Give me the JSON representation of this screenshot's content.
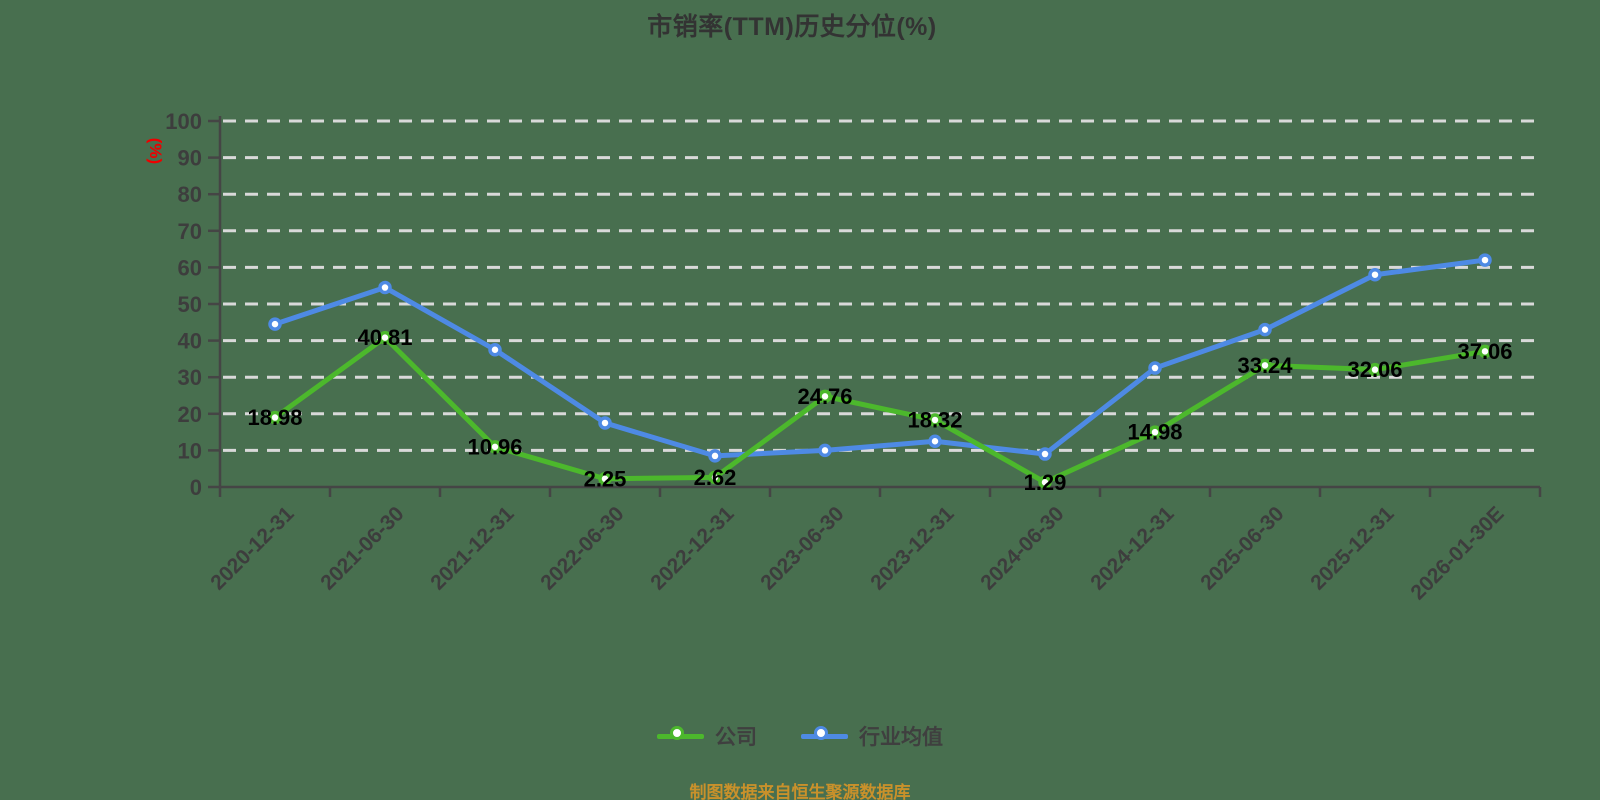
{
  "title": "市销率(TTM)历史分位(%)",
  "source_note": "制图数据来自恒生聚源数据库",
  "colors": {
    "background": "#486f4f",
    "grid": "#d9d9d9",
    "axis": "#454545",
    "tick_label": "#3d3d3d",
    "data_label": "#000000",
    "y_axis_name_color": "#ee0000",
    "title_color": "#333333",
    "source_note_color": "#c9912b",
    "legend_text": "#3f3f3f",
    "marker_fill": "#ffffff",
    "company_color": "#4cb82c",
    "industry_color": "#4e8ae4"
  },
  "chart_data": {
    "type": "line",
    "title": "市销率(TTM)历史分位(%)",
    "xlabel": "",
    "ylabel": "(%)",
    "ylim": [
      0,
      100
    ],
    "ytick_interval": 10,
    "grid": true,
    "grid_style": "dashed",
    "legend_position": "bottom",
    "categories": [
      "2020-12-31",
      "2021-06-30",
      "2021-12-31",
      "2022-06-30",
      "2022-12-31",
      "2023-06-30",
      "2023-12-31",
      "2024-06-30",
      "2024-12-31",
      "2025-06-30",
      "2025-12-31",
      "2026-01-30E"
    ],
    "series": [
      {
        "name": "行业均值",
        "color": "#4e8ae4",
        "values": [
          44.5,
          54.5,
          37.5,
          17.5,
          8.5,
          10,
          12.5,
          9,
          32.5,
          43,
          58,
          62
        ],
        "labels_visible": false
      },
      {
        "name": "公司",
        "color": "#4cb82c",
        "values": [
          18.98,
          40.81,
          10.96,
          2.25,
          2.62,
          24.76,
          18.32,
          1.29,
          14.98,
          33.24,
          32.06,
          37.06
        ],
        "labels_visible": true
      }
    ]
  }
}
